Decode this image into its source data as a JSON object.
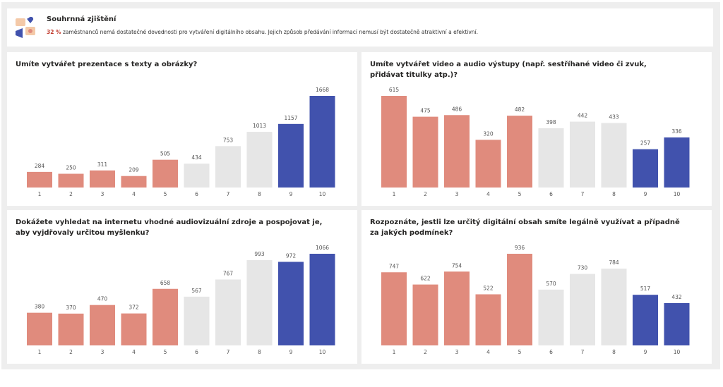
{
  "header": {
    "title": "Souhrnná zjištění",
    "highlight": "32 %",
    "text": "zaměstnanců nemá dostatečné dovednosti pro vytváření digitálního obsahu. Jejich způsob předávání informací nemusí být dostatečně atraktivní a efektivní."
  },
  "chart_data": [
    {
      "type": "bar",
      "title": "Umíte vytvářet prezentace s texty a obrázky?",
      "categories": [
        "1",
        "2",
        "3",
        "4",
        "5",
        "6",
        "7",
        "8",
        "9",
        "10"
      ],
      "values": [
        284,
        250,
        311,
        209,
        505,
        434,
        753,
        1013,
        1157,
        1668
      ],
      "colors": [
        "#e08b7d",
        "#e08b7d",
        "#e08b7d",
        "#e08b7d",
        "#e08b7d",
        "#e6e6e6",
        "#e6e6e6",
        "#e6e6e6",
        "#4152ad",
        "#4152ad"
      ]
    },
    {
      "type": "bar",
      "title": "Umíte vytvářet video a audio výstupy (např. sestříhané video či zvuk, přidávat titulky atp.)?",
      "categories": [
        "1",
        "2",
        "3",
        "4",
        "5",
        "6",
        "7",
        "8",
        "9",
        "10"
      ],
      "values": [
        615,
        475,
        486,
        320,
        482,
        398,
        442,
        433,
        257,
        336
      ],
      "colors": [
        "#e08b7d",
        "#e08b7d",
        "#e08b7d",
        "#e08b7d",
        "#e08b7d",
        "#e6e6e6",
        "#e6e6e6",
        "#e6e6e6",
        "#4152ad",
        "#4152ad"
      ]
    },
    {
      "type": "bar",
      "title": "Dokážete vyhledat na internetu vhodné audiovizuální zdroje a pospojovat je, aby vyjdřovaly určitou myšlenku?",
      "categories": [
        "1",
        "2",
        "3",
        "4",
        "5",
        "6",
        "7",
        "8",
        "9",
        "10"
      ],
      "values": [
        380,
        370,
        470,
        372,
        658,
        567,
        767,
        993,
        972,
        1066
      ],
      "colors": [
        "#e08b7d",
        "#e08b7d",
        "#e08b7d",
        "#e08b7d",
        "#e08b7d",
        "#e6e6e6",
        "#e6e6e6",
        "#e6e6e6",
        "#4152ad",
        "#4152ad"
      ]
    },
    {
      "type": "bar",
      "title": "Rozpoznáte, jestli lze určitý digitální obsah smíte legálně využívat a případně za jakých podmínek?",
      "categories": [
        "1",
        "2",
        "3",
        "4",
        "5",
        "6",
        "7",
        "8",
        "9",
        "10"
      ],
      "values": [
        747,
        622,
        754,
        522,
        936,
        570,
        730,
        784,
        517,
        432
      ],
      "colors": [
        "#e08b7d",
        "#e08b7d",
        "#e08b7d",
        "#e08b7d",
        "#e08b7d",
        "#e6e6e6",
        "#e6e6e6",
        "#e6e6e6",
        "#4152ad",
        "#4152ad"
      ]
    }
  ]
}
